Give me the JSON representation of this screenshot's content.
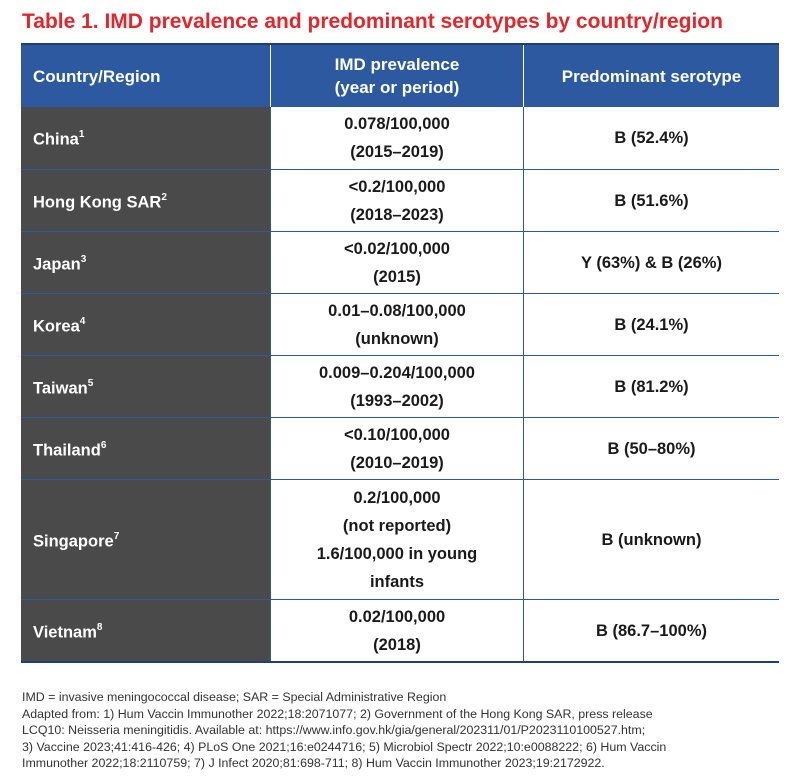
{
  "title": "Table 1. IMD prevalence and predominant serotypes by country/region",
  "headers": {
    "country": "Country/Region",
    "prevalence_line1": "IMD prevalence",
    "prevalence_line2": "(year or period)",
    "serotype": "Predominant serotype"
  },
  "rows": [
    {
      "country": "China",
      "ref": "1",
      "prev": [
        "0.078/100,000",
        "(2015–2019)"
      ],
      "serotype": "B (52.4%)"
    },
    {
      "country": "Hong Kong SAR",
      "ref": "2",
      "prev": [
        "<0.2/100,000",
        "(2018–2023)"
      ],
      "serotype": "B (51.6%)"
    },
    {
      "country": "Japan",
      "ref": "3",
      "prev": [
        "<0.02/100,000",
        "(2015)"
      ],
      "serotype": "Y (63%) & B (26%)"
    },
    {
      "country": "Korea",
      "ref": "4",
      "prev": [
        "0.01–0.08/100,000",
        "(unknown)"
      ],
      "serotype": "B (24.1%)"
    },
    {
      "country": "Taiwan",
      "ref": "5",
      "prev": [
        "0.009–0.204/100,000",
        "(1993–2002)"
      ],
      "serotype": "B (81.2%)"
    },
    {
      "country": "Thailand",
      "ref": "6",
      "prev": [
        "<0.10/100,000",
        "(2010–2019)"
      ],
      "serotype": "B (50–80%)"
    },
    {
      "country": "Singapore",
      "ref": "7",
      "prev": [
        "0.2/100,000",
        "(not reported)",
        "1.6/100,000 in young",
        "infants"
      ],
      "serotype": "B (unknown)"
    },
    {
      "country": "Vietnam",
      "ref": "8",
      "prev": [
        "0.02/100,000",
        "(2018)"
      ],
      "serotype": "B (86.7–100%)"
    }
  ],
  "footnote": [
    "IMD = invasive meningococcal disease; SAR = Special Administrative Region",
    "Adapted from: 1) Hum Vaccin Immunother 2022;18:2071077; 2) Government of the Hong Kong SAR, press release",
    "LCQ10: Neisseria meningitidis. Available at: https://www.info.gov.hk/gia/general/202311/01/P2023110100527.htm;",
    "3) Vaccine 2023;41:416-426; 4) PLoS One 2021;16:e0244716; 5) Microbiol Spectr 2022;10:e0088222; 6) Hum Vaccin",
    "Immunother 2022;18:2110759; 7) J Infect 2020;81:698-711; 8) Hum Vaccin Immunother 2023;19:2172922."
  ],
  "colors": {
    "title": "#e3262b",
    "header_bg": "#2c59a0",
    "country_bg": "#4a4a4a",
    "rule": "#1f3f7a"
  }
}
